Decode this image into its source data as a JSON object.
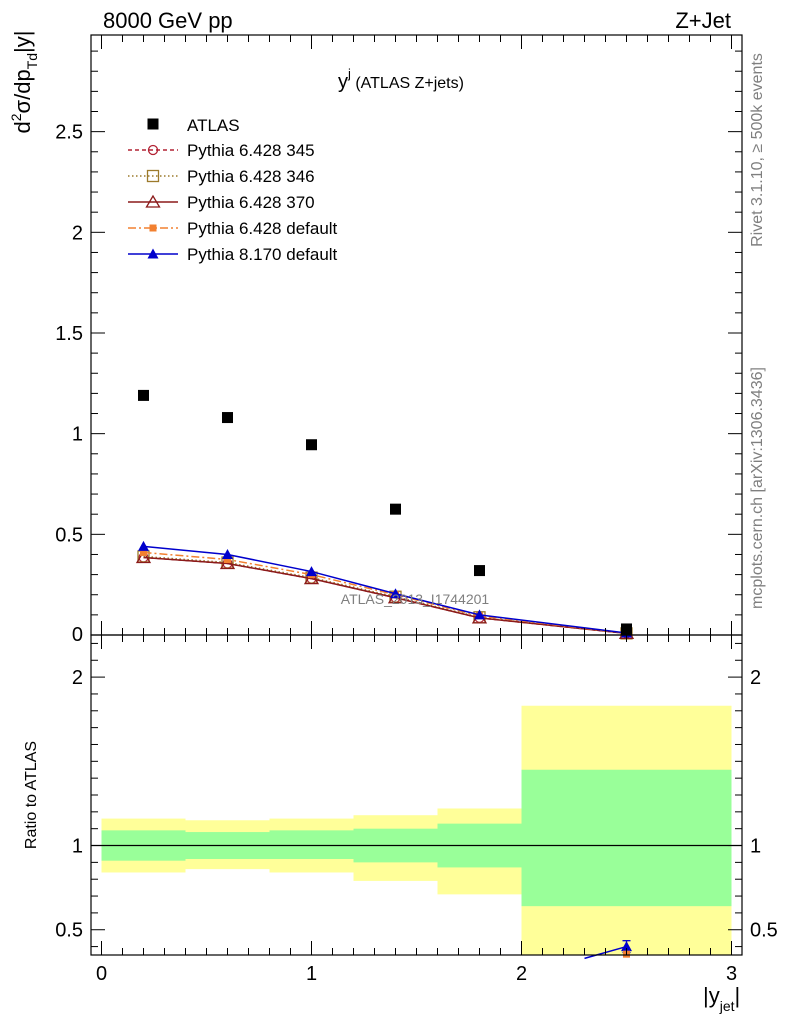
{
  "header": {
    "left": "8000 GeV pp",
    "right": "Z+Jet"
  },
  "side_labels": {
    "rivet": "Rivet 3.1.10, ≥ 500k events",
    "mcplots": "mcplots.cern.ch [arXiv:1306.3436]"
  },
  "watermark": "ATLAS_2013_I1744201",
  "chart_data": {
    "type": "scatter",
    "title_main": "y",
    "title_sup": "j",
    "title_rest": " (ATLAS Z+jets)",
    "ylabel_top": {
      "d": "d",
      "sup2": "2",
      "sigma": "σ/dp",
      "sub": "Td",
      "tail": "|y|"
    },
    "ylabel_ratio": "Ratio to ATLAS",
    "xlabel": {
      "main": "|y",
      "sub": "jet",
      "tail": "|"
    },
    "xlim": [
      -0.05,
      3.05
    ],
    "ylim_top": [
      0,
      2.98
    ],
    "ylim_ratio": [
      0.35,
      2.25
    ],
    "x_ticks": [
      "0",
      "1",
      "2",
      "3"
    ],
    "y_ticks_top": [
      "0.5",
      "1",
      "1.5",
      "2",
      "2.5"
    ],
    "y_tick_top_zero": "0",
    "y_ticks_ratio": [
      "0.5",
      "1",
      "2"
    ],
    "x": [
      0.2,
      0.6,
      1.0,
      1.4,
      1.8,
      2.5
    ],
    "x_bins": [
      [
        0.0,
        0.4
      ],
      [
        0.4,
        0.8
      ],
      [
        0.8,
        1.2
      ],
      [
        1.2,
        1.6
      ],
      [
        1.6,
        2.0
      ],
      [
        2.0,
        3.0
      ]
    ],
    "data": {
      "name": "ATLAS",
      "values": [
        1.19,
        1.08,
        0.945,
        0.625,
        0.32,
        0.03
      ]
    },
    "series": [
      {
        "name": "Pythia 6.428 345",
        "color": "#b22234",
        "dash": "4,3",
        "marker": "open-circle",
        "values": [
          0.385,
          0.355,
          0.28,
          0.185,
          0.085,
          0.008
        ]
      },
      {
        "name": "Pythia 6.428 346",
        "color": "#9c7a2b",
        "dash": "1.5,2.5",
        "marker": "open-square",
        "values": [
          0.39,
          0.36,
          0.285,
          0.19,
          0.088,
          0.008
        ]
      },
      {
        "name": "Pythia 6.428 370",
        "color": "#8b1a1a",
        "dash": "",
        "marker": "open-triangle",
        "values": [
          0.385,
          0.355,
          0.28,
          0.185,
          0.085,
          0.008
        ]
      },
      {
        "name": "Pythia 6.428 default",
        "color": "#f28030",
        "dash": "8,3,2,3",
        "marker": "filled-square",
        "values": [
          0.41,
          0.375,
          0.3,
          0.2,
          0.095,
          0.009
        ]
      },
      {
        "name": "Pythia 8.170 default",
        "color": "#0000cc",
        "dash": "",
        "marker": "filled-triangle",
        "values": [
          0.44,
          0.4,
          0.315,
          0.205,
          0.1,
          0.01
        ]
      }
    ],
    "ratio_series": {
      "name": "Pythia 8.170 default",
      "x": [
        2.3,
        2.5
      ],
      "values": [
        0.33,
        0.4
      ],
      "err": [
        0,
        0.035
      ]
    },
    "bands_green": [
      [
        0.91,
        1.09
      ],
      [
        0.92,
        1.08
      ],
      [
        0.92,
        1.09
      ],
      [
        0.9,
        1.1
      ],
      [
        0.87,
        1.13
      ],
      [
        0.64,
        1.45
      ]
    ],
    "bands_yellow": [
      [
        0.84,
        1.16
      ],
      [
        0.86,
        1.15
      ],
      [
        0.84,
        1.16
      ],
      [
        0.79,
        1.18
      ],
      [
        0.71,
        1.22
      ],
      [
        0.35,
        1.83
      ]
    ],
    "colors": {
      "green": "#99ff99",
      "yellow": "#ffff99"
    },
    "legend_position": "top-left"
  }
}
